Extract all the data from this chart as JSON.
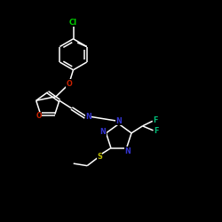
{
  "background_color": "#000000",
  "bond_color": "#ffffff",
  "atom_colors": {
    "Cl": "#00cc00",
    "O": "#cc2200",
    "N": "#3333cc",
    "F": "#00bb77",
    "S": "#bbbb00",
    "C": "#ffffff"
  },
  "figsize": [
    2.5,
    2.5
  ],
  "dpi": 100,
  "lw": 1.1
}
